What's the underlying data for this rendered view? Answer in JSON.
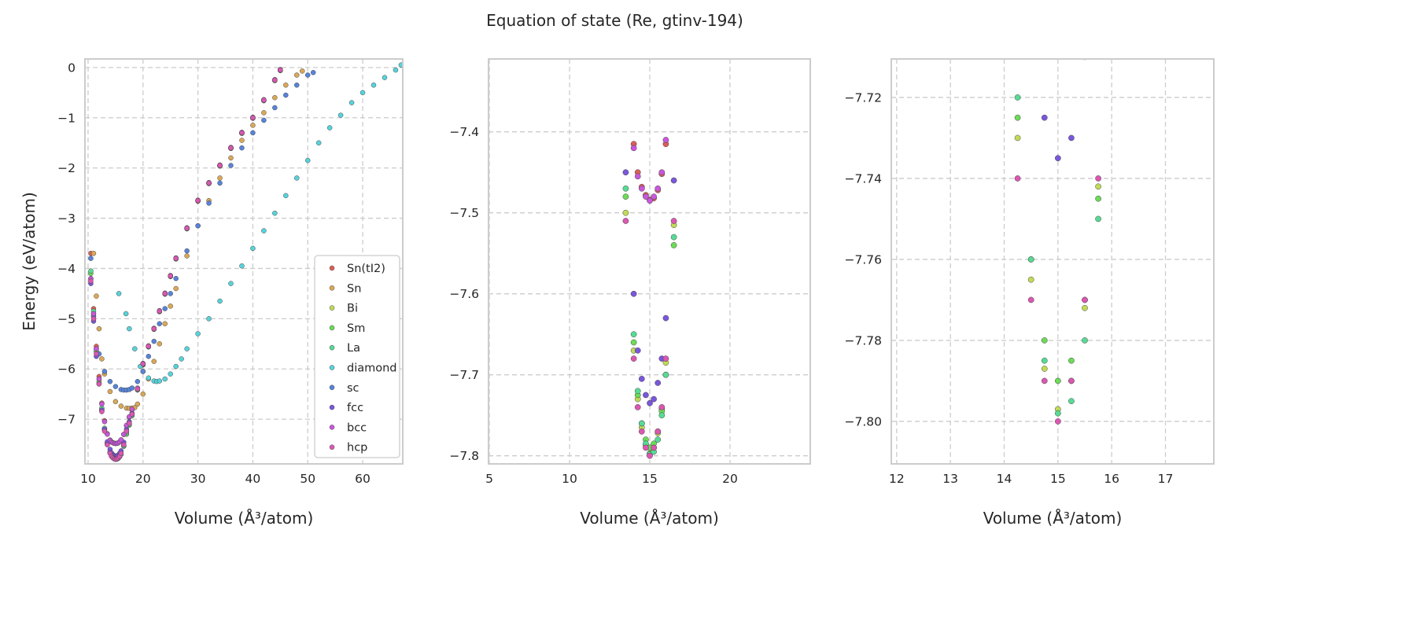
{
  "chart_data": {
    "type": "scatter",
    "title": "Equation of state (Re, gtinv-194)",
    "grids": {
      "A": [
        10.5,
        11,
        11.5,
        12,
        12.5,
        13,
        13.5,
        14,
        14.25,
        14.5,
        14.75,
        15,
        15.25,
        15.5,
        15.75,
        16,
        16.5,
        17,
        17.5,
        18,
        19,
        20,
        21,
        22,
        23,
        24,
        25,
        26,
        28,
        30,
        32,
        34,
        36,
        38,
        40,
        42,
        44,
        45
      ]
    },
    "series": [
      {
        "name": "Sn(tI2)",
        "color": "#db5f57",
        "grid": "A",
        "e": [
          -3.7,
          -4.8,
          -5.55,
          -6.15,
          -6.68,
          -7.03,
          -7.29,
          -7.415,
          -7.45,
          -7.468,
          -7.478,
          -7.484,
          -7.482,
          -7.472,
          -7.452,
          -7.415,
          -7.305,
          -7.13,
          -6.96,
          -6.81,
          -6.39,
          -5.92,
          -5.56,
          -5.21,
          -4.86,
          -4.51,
          -4.16,
          -3.81,
          -3.21,
          -2.66,
          -2.31,
          -1.96,
          -1.61,
          -1.31,
          -1.01,
          -0.66,
          -0.26,
          -0.06
        ]
      },
      {
        "name": "Sn",
        "color": "#dba857",
        "v": [
          11,
          11.5,
          12,
          12.5,
          13,
          14,
          15,
          16,
          17,
          17.5,
          18,
          18.5,
          19,
          20,
          21,
          22,
          23,
          24,
          25,
          26,
          28,
          30,
          32,
          34,
          36,
          38,
          40,
          42,
          44,
          46,
          48,
          49
        ],
        "e": [
          -3.7,
          -4.55,
          -5.2,
          -5.8,
          -6.1,
          -6.45,
          -6.65,
          -6.74,
          -6.78,
          -6.785,
          -6.78,
          -6.77,
          -6.7,
          -6.5,
          -6.2,
          -5.85,
          -5.5,
          -5.1,
          -4.75,
          -4.4,
          -3.75,
          -3.15,
          -2.65,
          -2.2,
          -1.8,
          -1.45,
          -1.15,
          -0.9,
          -0.6,
          -0.35,
          -0.15,
          -0.07
        ]
      },
      {
        "name": "Bi",
        "color": "#c0db57",
        "grid": "A",
        "e": [
          -4.2,
          -4.95,
          -5.65,
          -6.28,
          -6.83,
          -7.22,
          -7.5,
          -7.67,
          -7.73,
          -7.765,
          -7.787,
          -7.797,
          -7.79,
          -7.772,
          -7.742,
          -7.685,
          -7.515,
          -7.245,
          -7.085,
          -6.905,
          -6.4,
          -5.9,
          -5.55,
          -5.2,
          -4.85,
          -4.5,
          -4.15,
          -3.8,
          -3.2,
          -2.65,
          -2.3,
          -1.95,
          -1.6,
          -1.3,
          -1.0,
          -0.65,
          -0.25,
          -0.05
        ]
      },
      {
        "name": "Sm",
        "color": "#6cdb57",
        "grid": "A",
        "e": [
          -4.1,
          -4.9,
          -5.65,
          -6.25,
          -6.8,
          -7.2,
          -7.48,
          -7.66,
          -7.725,
          -7.76,
          -7.78,
          -7.79,
          -7.785,
          -7.77,
          -7.745,
          -7.7,
          -7.54,
          -7.3,
          -7.12,
          -6.93,
          -6.42,
          -5.91,
          -5.56,
          -5.21,
          -4.86,
          -4.51,
          -4.16,
          -3.81,
          -3.21,
          -2.66,
          -2.31,
          -1.96,
          -1.61,
          -1.31,
          -1.01,
          -0.66,
          -0.26,
          -0.06
        ]
      },
      {
        "name": "La",
        "color": "#57db94",
        "grid": "A",
        "e": [
          -4.05,
          -4.85,
          -5.6,
          -6.2,
          -6.78,
          -7.18,
          -7.47,
          -7.65,
          -7.72,
          -7.76,
          -7.785,
          -7.798,
          -7.795,
          -7.78,
          -7.75,
          -7.7,
          -7.53,
          -7.27,
          -7.1,
          -6.92,
          -6.41,
          -5.9,
          -5.55,
          -5.2,
          -4.85,
          -4.5,
          -4.15,
          -3.8,
          -3.2,
          -2.65,
          -2.3,
          -1.95,
          -1.6,
          -1.3,
          -1.0,
          -0.65,
          -0.25,
          -0.05
        ]
      },
      {
        "name": "diamond",
        "color": "#57d3db",
        "v": [
          15.6,
          16.9,
          17.5,
          18.5,
          19.5,
          20,
          21,
          22,
          22.5,
          23,
          24,
          25,
          26,
          27,
          28,
          30,
          32,
          34,
          36,
          38,
          40,
          42,
          44,
          46,
          48,
          50,
          52,
          54,
          56,
          58,
          60,
          62,
          64,
          66,
          67
        ],
        "e": [
          -4.5,
          -4.9,
          -5.2,
          -5.6,
          -5.95,
          -6.05,
          -6.18,
          -6.24,
          -6.25,
          -6.24,
          -6.2,
          -6.1,
          -5.95,
          -5.8,
          -5.6,
          -5.3,
          -5.0,
          -4.65,
          -4.3,
          -3.95,
          -3.6,
          -3.25,
          -2.9,
          -2.55,
          -2.2,
          -1.85,
          -1.5,
          -1.2,
          -0.95,
          -0.7,
          -0.5,
          -0.35,
          -0.2,
          -0.05,
          0.05
        ]
      },
      {
        "name": "sc",
        "color": "#5784db",
        "v": [
          10.5,
          11,
          12,
          13,
          14,
          15,
          16,
          16.5,
          17,
          17.5,
          18,
          19,
          20,
          21,
          22,
          23,
          24,
          25,
          26,
          28,
          30,
          32,
          34,
          36,
          38,
          40,
          42,
          44,
          46,
          48,
          50,
          51
        ],
        "e": [
          -3.8,
          -4.95,
          -5.7,
          -6.05,
          -6.25,
          -6.35,
          -6.41,
          -6.42,
          -6.42,
          -6.41,
          -6.38,
          -6.25,
          -6.05,
          -5.75,
          -5.45,
          -5.1,
          -4.8,
          -4.5,
          -4.2,
          -3.65,
          -3.15,
          -2.7,
          -2.3,
          -1.95,
          -1.6,
          -1.3,
          -1.05,
          -0.8,
          -0.55,
          -0.35,
          -0.15,
          -0.1
        ]
      },
      {
        "name": "fcc",
        "color": "#7957db",
        "grid": "A",
        "e": [
          -4.3,
          -5.05,
          -5.75,
          -6.3,
          -6.82,
          -7.2,
          -7.45,
          -7.6,
          -7.67,
          -7.705,
          -7.725,
          -7.735,
          -7.73,
          -7.71,
          -7.68,
          -7.63,
          -7.46,
          -7.2,
          -7.05,
          -6.88,
          -6.39,
          -5.9,
          -5.55,
          -5.2,
          -4.85,
          -4.5,
          -4.15,
          -3.8,
          -3.2,
          -2.65,
          -2.3,
          -1.95,
          -1.6,
          -1.3,
          -1.0,
          -0.65,
          -0.25,
          -0.05
        ]
      },
      {
        "name": "bcc",
        "color": "#c957db",
        "grid": "A",
        "e": [
          -4.2,
          -4.9,
          -5.6,
          -6.2,
          -6.7,
          -7.05,
          -7.3,
          -7.42,
          -7.455,
          -7.47,
          -7.48,
          -7.485,
          -7.48,
          -7.47,
          -7.45,
          -7.41,
          -7.3,
          -7.12,
          -6.95,
          -6.8,
          -6.38,
          -5.89,
          -5.54,
          -5.19,
          -4.84,
          -4.49,
          -4.14,
          -3.79,
          -3.19,
          -2.64,
          -2.29,
          -1.94,
          -1.59,
          -1.29,
          -0.99,
          -0.64,
          -0.24,
          -0.04
        ]
      },
      {
        "name": "hcp",
        "color": "#db57b2",
        "grid": "A",
        "e": [
          -4.25,
          -5.0,
          -5.7,
          -6.3,
          -6.85,
          -7.24,
          -7.51,
          -7.68,
          -7.74,
          -7.77,
          -7.79,
          -7.8,
          -7.79,
          -7.77,
          -7.74,
          -7.68,
          -7.51,
          -7.24,
          -7.08,
          -6.9,
          -6.4,
          -5.9,
          -5.55,
          -5.2,
          -4.85,
          -4.5,
          -4.15,
          -3.8,
          -3.2,
          -2.65,
          -2.3,
          -1.95,
          -1.6,
          -1.3,
          -1.0,
          -0.65,
          -0.25,
          -0.05
        ]
      }
    ],
    "panels": [
      {
        "xlabel": "Volume (Å³/atom)",
        "ylabel": "Energy (eV/atom)",
        "xlim": [
          9.43,
          67.3
        ],
        "ylim": [
          -7.89,
          0.17
        ],
        "xticks": [
          10,
          20,
          30,
          40,
          50,
          60
        ],
        "xticklabels": [
          "10",
          "20",
          "30",
          "40",
          "50",
          "60"
        ],
        "yticks": [
          0,
          -1,
          -2,
          -3,
          -4,
          -5,
          -6,
          -7
        ],
        "yticklabels": [
          "0",
          "−1",
          "−2",
          "−3",
          "−4",
          "−5",
          "−6",
          "−7"
        ],
        "legend": "lower-right",
        "grid": true
      },
      {
        "xlabel": "Volume (Å³/atom)",
        "ylabel": "",
        "xlim": [
          4.95,
          25.0
        ],
        "ylim": [
          -7.81,
          -7.31
        ],
        "xticks": [
          5,
          10,
          15,
          20
        ],
        "xticklabels": [
          "5",
          "10",
          "15",
          "20"
        ],
        "yticks": [
          -7.4,
          -7.5,
          -7.6,
          -7.7,
          -7.8
        ],
        "yticklabels": [
          "−7.4",
          "−7.5",
          "−7.6",
          "−7.7",
          "−7.8"
        ],
        "grid": true
      },
      {
        "xlabel": "Volume (Å³/atom)",
        "ylabel": "",
        "xlim": [
          11.9,
          17.9
        ],
        "ylim": [
          -7.8105,
          -7.7105
        ],
        "xticks": [
          12,
          13,
          14,
          15,
          16,
          17
        ],
        "xticklabels": [
          "12",
          "13",
          "14",
          "15",
          "16",
          "17"
        ],
        "yticks": [
          -7.72,
          -7.74,
          -7.76,
          -7.78,
          -7.8
        ],
        "yticklabels": [
          "−7.72",
          "−7.74",
          "−7.76",
          "−7.78",
          "−7.80"
        ],
        "grid": true
      }
    ]
  }
}
